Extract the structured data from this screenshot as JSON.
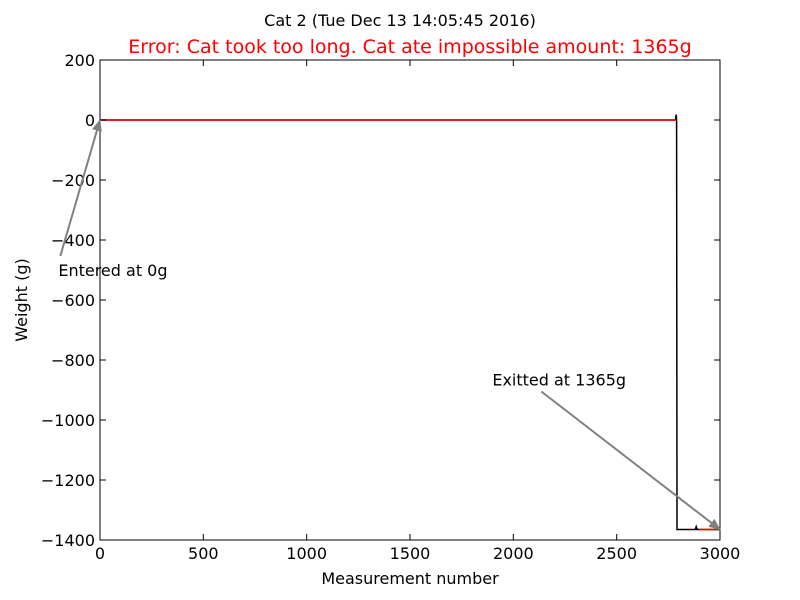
{
  "chart_data": {
    "type": "line",
    "suptitle": "Cat 2 (Tue Dec 13 14:05:45 2016)",
    "title": "Error: Cat took too long. Cat ate impossible amount: 1365g",
    "title_color": "#ff0000",
    "xlabel": "Measurement number",
    "ylabel": "Weight (g)",
    "xlim": [
      0,
      3000
    ],
    "ylim": [
      -1400,
      200
    ],
    "x_ticks": [
      0,
      500,
      1000,
      1500,
      2000,
      2500,
      3000
    ],
    "x_tick_labels": [
      "0",
      "500",
      "1000",
      "1500",
      "2000",
      "2500",
      "3000"
    ],
    "y_ticks": [
      200,
      0,
      -200,
      -400,
      -600,
      -800,
      -1000,
      -1200,
      -1400
    ],
    "y_tick_labels": [
      "200",
      "0",
      "−200",
      "−400",
      "−600",
      "−800",
      "−1000",
      "−1200",
      "−1400"
    ],
    "grid": false,
    "series": [
      {
        "color": "#000000",
        "x": [
          0,
          2785,
          2788,
          2790,
          2792,
          2795,
          3000
        ],
        "y": [
          0,
          0,
          18,
          0,
          -1365,
          -1365,
          -1365
        ]
      },
      {
        "color": "#ff0000",
        "x": [
          0,
          2790
        ],
        "y": [
          0,
          0
        ]
      },
      {
        "color": "#ff0000",
        "x": [
          2900,
          3000
        ],
        "y": [
          -1365,
          -1365
        ]
      },
      {
        "color": "#000000",
        "x": [
          2880,
          2885,
          2890
        ],
        "y": [
          -1365,
          -1355,
          -1365
        ]
      }
    ],
    "annotations": [
      {
        "text": "Entered at 0g",
        "x": 0,
        "y": 0,
        "text_x": -100,
        "text_y": -500,
        "arrow_color": "#808080"
      },
      {
        "text": "Exitted at 1365g",
        "x": 3000,
        "y": -1365,
        "text_x": 2000,
        "text_y": -865,
        "arrow_color": "#808080"
      }
    ]
  }
}
